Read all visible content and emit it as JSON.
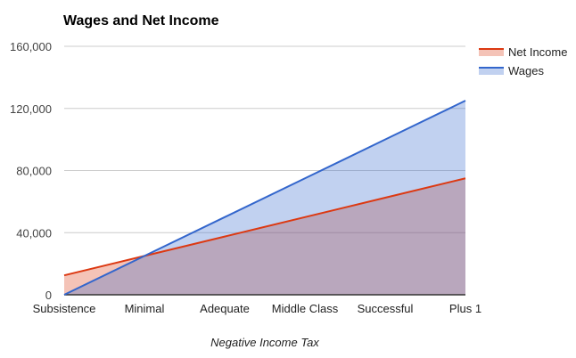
{
  "chart_data": {
    "type": "area",
    "title": "Wages and Net Income",
    "xlabel": "Negative Income Tax",
    "ylabel": "",
    "categories": [
      "Subsistence",
      "Minimal",
      "Adequate",
      "Middle Class",
      "Successful",
      "Plus 1"
    ],
    "series": [
      {
        "name": "Net Income",
        "color": "#dc3912",
        "fill": "#f4c5bb",
        "values": [
          12500,
          25000,
          37500,
          50000,
          62500,
          75000
        ]
      },
      {
        "name": "Wages",
        "color": "#3366cc",
        "fill": "#c2d1f0",
        "values": [
          0,
          25000,
          50000,
          75000,
          100000,
          125000
        ]
      }
    ],
    "ylim": [
      0,
      160000
    ],
    "yticks": [
      0,
      40000,
      80000,
      120000,
      160000
    ],
    "ytick_labels": [
      "0",
      "40,000",
      "80,000",
      "120,000",
      "160,000"
    ],
    "grid": true,
    "legend_position": "right"
  }
}
